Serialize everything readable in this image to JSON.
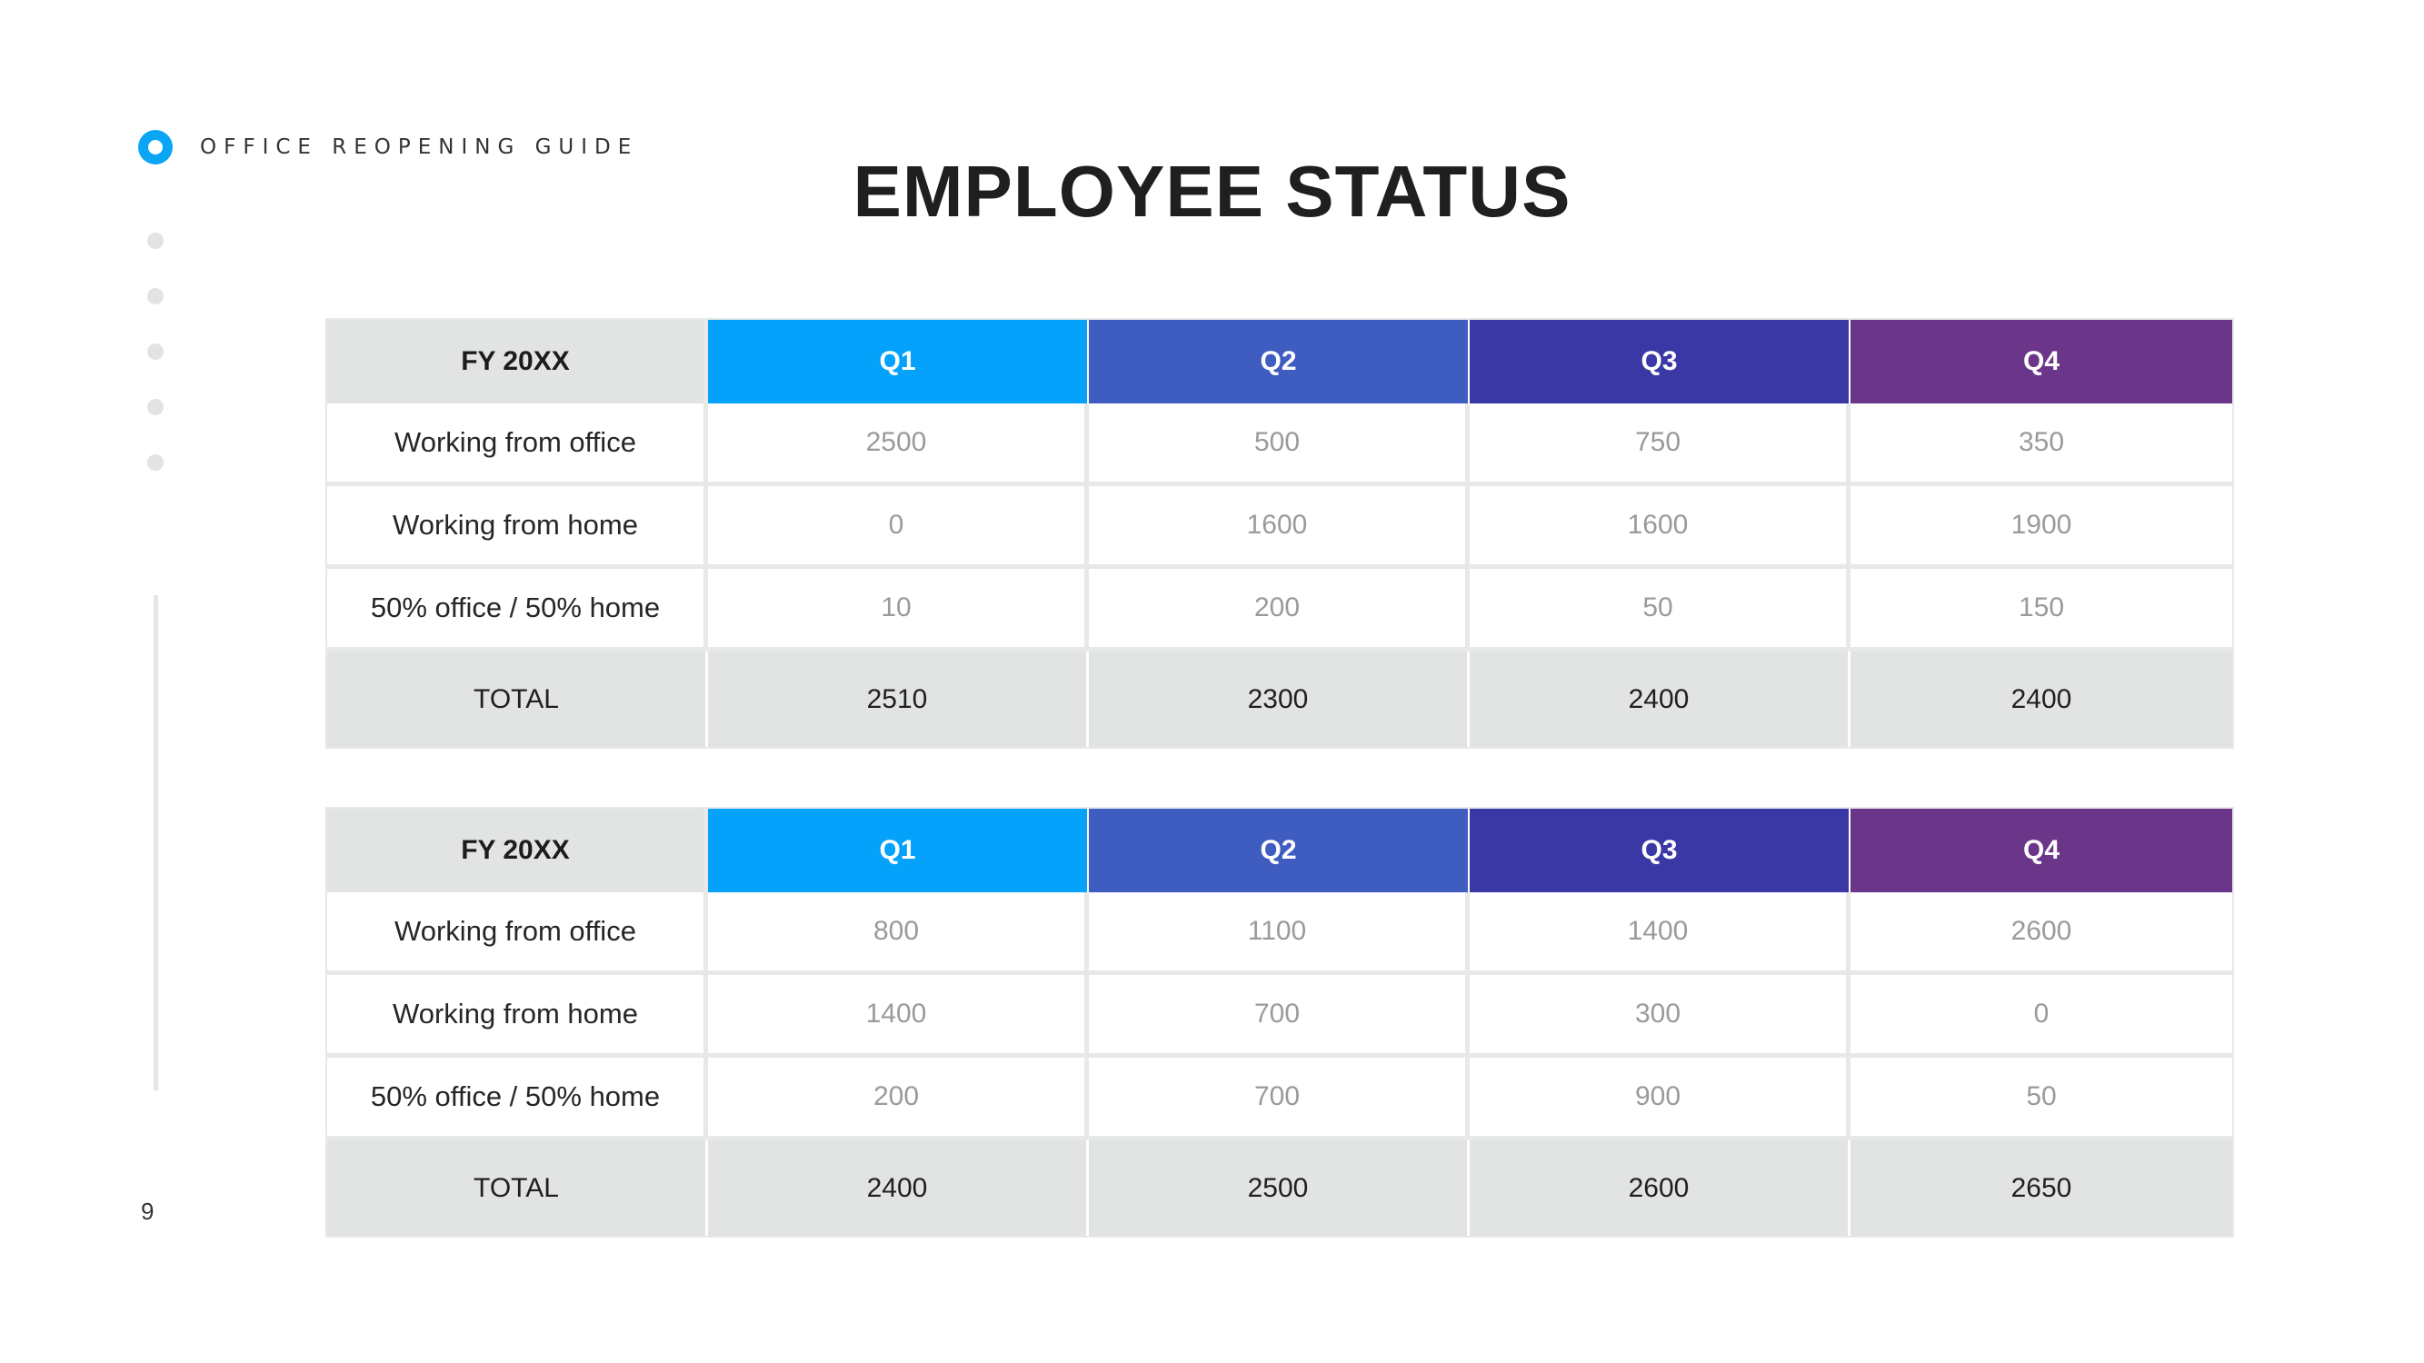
{
  "header": {
    "section_label": "OFFICE REOPENING GUIDE",
    "title": "EMPLOYEE STATUS"
  },
  "page_number": "9",
  "colors": {
    "accent": "#0aa5f5",
    "q1": "#04a2fb",
    "q2": "#3f5cc1",
    "q3": "#3a38a5",
    "q4": "#6b3589",
    "header_gray": "#e2e3e3"
  },
  "tables": [
    {
      "header": [
        "FY 20XX",
        "Q1",
        "Q2",
        "Q3",
        "Q4"
      ],
      "rows": [
        [
          "Working from office",
          "2500",
          "500",
          "750",
          "350"
        ],
        [
          "Working from home",
          "0",
          "1600",
          "1600",
          "1900"
        ],
        [
          "50% office / 50% home",
          "10",
          "200",
          "50",
          "150"
        ]
      ],
      "total": [
        "TOTAL",
        "2510",
        "2300",
        "2400",
        "2400"
      ]
    },
    {
      "header": [
        "FY 20XX",
        "Q1",
        "Q2",
        "Q3",
        "Q4"
      ],
      "rows": [
        [
          "Working from office",
          "800",
          "1100",
          "1400",
          "2600"
        ],
        [
          "Working from home",
          "1400",
          "700",
          "300",
          "0"
        ],
        [
          "50% office / 50% home",
          "200",
          "700",
          "900",
          "50"
        ]
      ],
      "total": [
        "TOTAL",
        "2400",
        "2500",
        "2600",
        "2650"
      ]
    }
  ]
}
